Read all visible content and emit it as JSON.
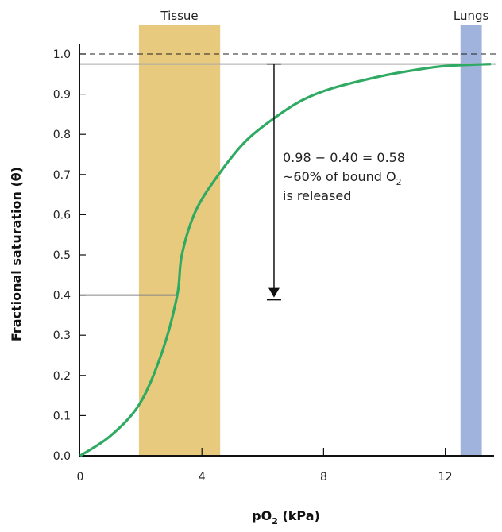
{
  "chart_data": {
    "type": "line",
    "title": "",
    "xlabel": "pO",
    "xlabel_sub": "2",
    "xlabel_unit": " (kPa)",
    "ylabel": "Fractional saturation (θ)",
    "xlim": [
      0,
      13.5
    ],
    "ylim": [
      0,
      1.05
    ],
    "x_ticks": [
      0,
      4,
      8,
      12
    ],
    "x_tick_labels": [
      "0",
      "4",
      "8",
      "12"
    ],
    "y_ticks": [
      0,
      0.1,
      0.2,
      0.3,
      0.4,
      0.5,
      0.6,
      0.7,
      0.8,
      0.9,
      1.0
    ],
    "y_tick_labels": [
      "0.0",
      "0.1",
      "0.2",
      "0.3",
      "0.4",
      "0.5",
      "0.6",
      "0.7",
      "0.8",
      "0.9",
      "1.0"
    ],
    "grid": false,
    "series": [
      {
        "color": "#2EAA62",
        "x": [
          0,
          1.0,
          1.96,
          2.7,
          3.19,
          3.34,
          3.8,
          4.55,
          5.4,
          6.37,
          7.3,
          8.3,
          9.9,
          11.0,
          12.0,
          13.5
        ],
        "y": [
          0,
          0.05,
          0.13,
          0.26,
          0.4,
          0.5,
          0.61,
          0.7,
          0.78,
          0.84,
          0.885,
          0.915,
          0.945,
          0.96,
          0.97,
          0.975
        ]
      }
    ],
    "reference_lines": {
      "max_dashed": 1.0,
      "lungs_saturation": 0.975,
      "tissue_saturation": 0.4,
      "tissue_pO2": 3.19
    },
    "bands": [
      {
        "label": "Tissue",
        "from": 1.93,
        "to": 4.6,
        "color": "#E8CA7E"
      },
      {
        "label": "Lungs",
        "from": 12.5,
        "to": 13.2,
        "color": "#9FB3DC"
      }
    ],
    "arrow": {
      "x": 6.37,
      "from": 0.975,
      "to": 0.39
    },
    "annotation": {
      "line1": "0.98 − 0.40 = 0.58",
      "line2": "~60% of bound O",
      "line2_sub": "2",
      "line3": "is released"
    }
  }
}
